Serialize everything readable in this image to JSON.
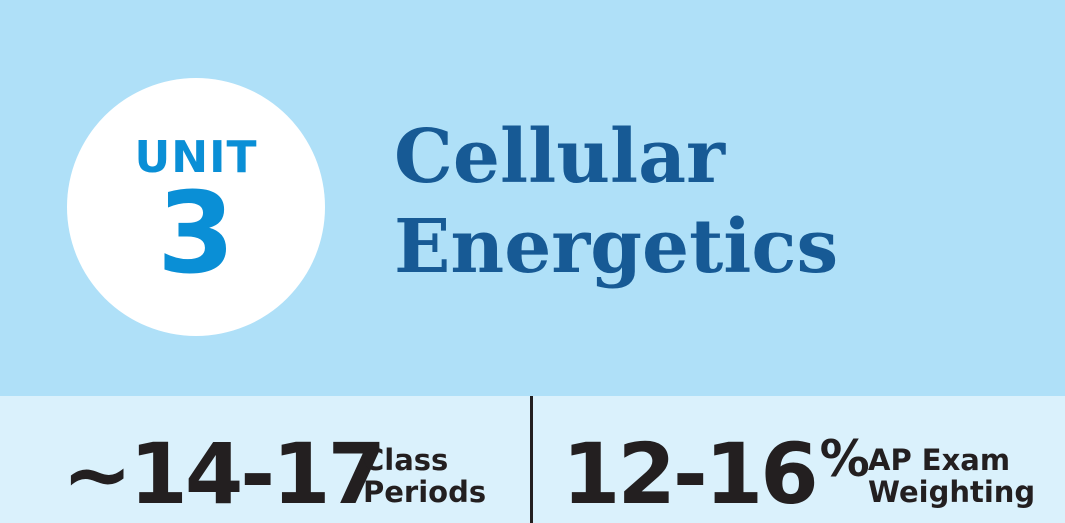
{
  "unit": {
    "label": "UNIT",
    "number": "3"
  },
  "title": {
    "line1": "Cellular",
    "line2": "Energetics"
  },
  "stats": [
    {
      "value": "~14-17",
      "label_line1": "Class",
      "label_line2": "Periods"
    },
    {
      "value": "12-16",
      "suffix": "%",
      "label_line1": "AP Exam",
      "label_line2": "Weighting"
    }
  ],
  "colors": {
    "header_bg": "#afe0f8",
    "footer_bg": "#daf1fc",
    "unit_blue": "#0a8fd6",
    "title_blue": "#175a95",
    "text_dark": "#231f20"
  }
}
